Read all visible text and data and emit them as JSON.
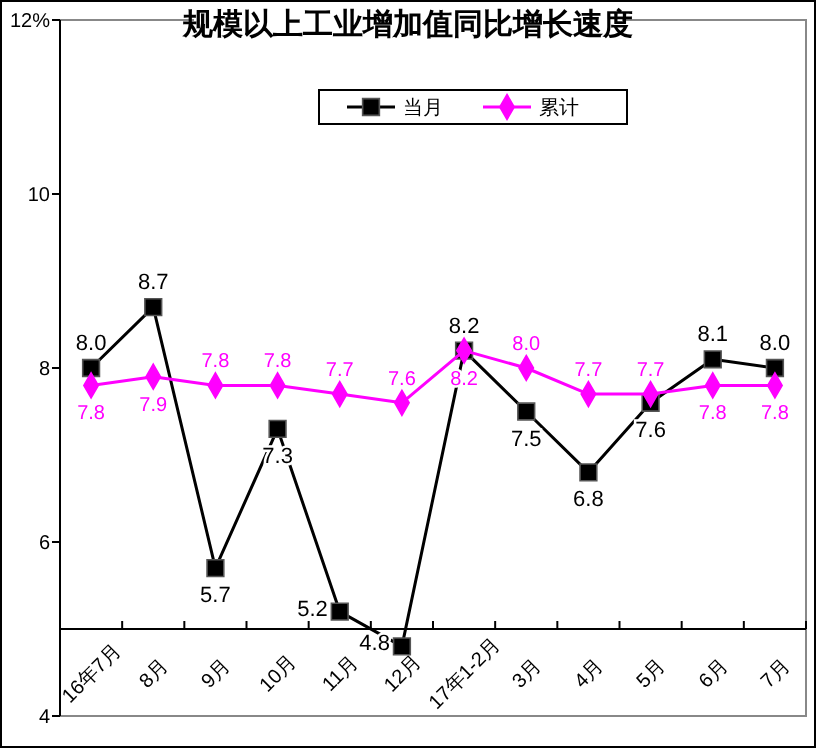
{
  "chart_data": {
    "type": "line",
    "title": "规模以上工业增加值同比增长速度",
    "categories": [
      "16年7月",
      "8月",
      "9月",
      "10月",
      "11月",
      "12月",
      "17年1-2月",
      "3月",
      "4月",
      "5月",
      "6月",
      "7月"
    ],
    "series": [
      {
        "name": "当月",
        "color": "#000000",
        "marker": "square",
        "values": [
          8.0,
          8.7,
          5.7,
          7.3,
          5.2,
          4.8,
          8.2,
          7.5,
          6.8,
          7.6,
          8.1,
          8.0
        ],
        "value_labels": [
          "8.0",
          "8.7",
          "5.7",
          "7.3",
          "5.2",
          "4.8",
          "8.2",
          "7.5",
          "6.8",
          "7.6",
          "8.1",
          "8.0"
        ]
      },
      {
        "name": "累计",
        "color": "#ff00ff",
        "marker": "diamond",
        "values": [
          7.8,
          7.9,
          7.8,
          7.8,
          7.7,
          7.6,
          8.2,
          8.0,
          7.7,
          7.7,
          7.8,
          7.8
        ],
        "value_labels": [
          "7.8",
          "7.9",
          "7.8",
          "7.8",
          "7.7",
          "7.6",
          "8.2",
          "8.0",
          "7.7",
          "7.7",
          "7.8",
          "7.8"
        ]
      }
    ],
    "ylim": [
      4,
      12
    ],
    "yticks": [
      4,
      6,
      8,
      10,
      {
        "value": 12,
        "label": "12%"
      }
    ],
    "ref_lines": [
      {
        "axis": "y",
        "value": 5,
        "color": "#000000"
      }
    ],
    "legend": "top",
    "grid": false
  }
}
